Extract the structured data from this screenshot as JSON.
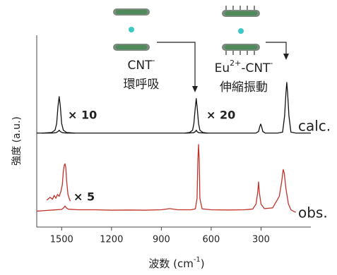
{
  "chart_data": {
    "type": "line",
    "y_label": "強度 (a.u.)",
    "x_label": {
      "text": "波数 (cm",
      "sup": "-1",
      "end": ")"
    },
    "xlim": [
      1650,
      0
    ],
    "ylim": [
      0,
      100
    ],
    "xticks": [
      1500,
      1200,
      900,
      600,
      300
    ],
    "annotations": [
      {
        "lines": [
          [
            {
              "text": "CNT"
            },
            {
              "text": "-",
              "sup": true
            }
          ],
          [
            {
              "text": "環呼吸"
            }
          ]
        ]
      },
      {
        "lines": [
          [
            {
              "text": "Eu"
            },
            {
              "text": "2+",
              "sup": true
            },
            {
              "text": "-CNT"
            },
            {
              "text": "-",
              "sup": true
            }
          ],
          [
            {
              "text": "伸縮振動"
            }
          ]
        ]
      }
    ],
    "series": [
      {
        "name": "calc.",
        "color": "#111111",
        "x": [
          1650,
          1560,
          1535,
          1522,
          1515,
          1508,
          1495,
          1470,
          1200,
          900,
          740,
          705,
          695,
          690,
          685,
          675,
          640,
          400,
          330,
          315,
          307,
          302,
          297,
          289,
          275,
          200,
          170,
          158,
          150,
          145,
          140,
          132,
          120,
          90,
          40,
          0
        ],
        "values": [
          49,
          49,
          49.2,
          49.8,
          50.5,
          49.8,
          49.2,
          49,
          49,
          49,
          49,
          49.2,
          49.8,
          50.5,
          49.8,
          49.2,
          49,
          49,
          49,
          49.8,
          52.5,
          53.7,
          52.5,
          49.8,
          49,
          49,
          49.5,
          58,
          70,
          75.4,
          70,
          58,
          49.5,
          49,
          49,
          49
        ]
      },
      {
        "name": "× 10",
        "color": "#111111",
        "x": [
          1620,
          1560,
          1540,
          1530,
          1522,
          1515,
          1508,
          1500,
          1490,
          1470,
          1420
        ],
        "values": [
          49,
          49.3,
          50.5,
          54,
          63,
          68,
          63,
          54,
          50.5,
          49.3,
          49
        ]
      },
      {
        "name": "× 20",
        "color": "#111111",
        "x": [
          760,
          730,
          712,
          704,
          696,
          690,
          684,
          676,
          668,
          650,
          620
        ],
        "values": [
          49,
          49.3,
          50.5,
          54,
          62,
          67,
          62,
          54,
          50.5,
          49.3,
          49
        ]
      },
      {
        "name": "obs.",
        "color": "#c0332b",
        "x": [
          1650,
          1600,
          1550,
          1500,
          1488,
          1480,
          1472,
          1460,
          1400,
          1300,
          1200,
          1100,
          1000,
          900,
          850,
          800,
          720,
          695,
          685,
          680,
          676,
          672,
          668,
          655,
          600,
          500,
          400,
          350,
          330,
          320,
          315,
          310,
          300,
          280,
          230,
          190,
          175,
          168,
          166,
          160,
          150,
          135,
          120,
          100,
          90
        ],
        "values": [
          8.3,
          8.6,
          8.9,
          9.2,
          10,
          11,
          10,
          9.3,
          9,
          9,
          8.8,
          8.9,
          8.8,
          9,
          9.6,
          9,
          9,
          9.5,
          15,
          35,
          43,
          35,
          15,
          9.5,
          9,
          8.9,
          9,
          9.4,
          12,
          18,
          23.5,
          18,
          12,
          9.6,
          10,
          16,
          24,
          29,
          30,
          28,
          20,
          12,
          9,
          8,
          7.8
        ]
      },
      {
        "name": "× 5",
        "color": "#c0332b",
        "x": [
          1590,
          1570,
          1555,
          1545,
          1535,
          1525,
          1515,
          1505,
          1496,
          1490,
          1485,
          1480,
          1475,
          1470,
          1462,
          1455,
          1448
        ],
        "values": [
          14,
          15.5,
          14.5,
          16.5,
          15,
          17,
          16,
          18.5,
          22,
          29,
          32,
          33,
          31,
          24,
          17,
          15,
          13.5
        ]
      }
    ]
  }
}
